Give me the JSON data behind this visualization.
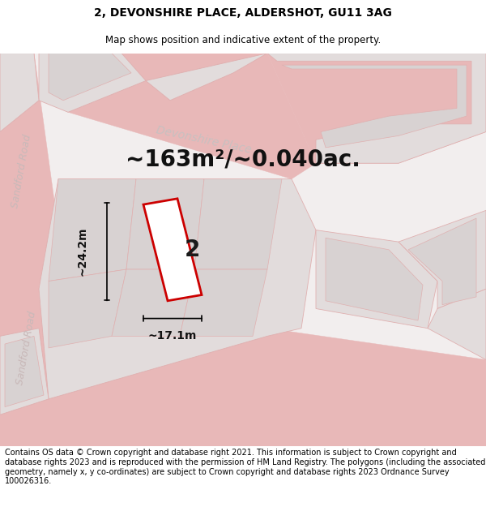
{
  "title": "2, DEVONSHIRE PLACE, ALDERSHOT, GU11 3AG",
  "subtitle": "Map shows position and indicative extent of the property.",
  "area_label": "~163m²/~0.040ac.",
  "width_label": "~17.1m",
  "height_label": "~24.2m",
  "property_number": "2",
  "footer": "Contains OS data © Crown copyright and database right 2021. This information is subject to Crown copyright and database rights 2023 and is reproduced with the permission of HM Land Registry. The polygons (including the associated geometry, namely x, y co-ordinates) are subject to Crown copyright and database rights 2023 Ordnance Survey 100026316.",
  "map_bg": "#f2efef",
  "road_fill": "#f2efef",
  "road_edge": "#e8b8b8",
  "block_fill": "#e2dcdc",
  "block_edge": "#e0b0b0",
  "inner_fill": "#d8d2d2",
  "plot_outline_color": "#cc0000",
  "plot_fill_color": "#ffffff",
  "title_fontsize": 10,
  "subtitle_fontsize": 8.5,
  "area_fontsize": 20,
  "dim_fontsize": 10,
  "footer_fontsize": 7.0,
  "street_color": "#c8b8b8",
  "street_fontsize": 9
}
